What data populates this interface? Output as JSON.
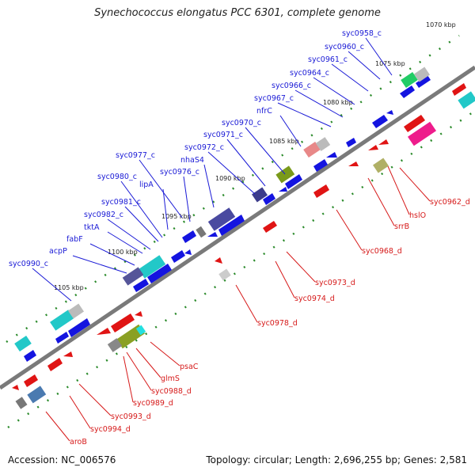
{
  "title": "Synechococcus elongatus PCC 6301, complete genome",
  "accession": "Accession: NC_006576",
  "summary": "Topology: circular; Length: 2,696,255 bp; Genes: 2,581",
  "ticks": [
    "1070 kbp",
    "1075 kbp",
    "1080 kbp",
    "1085 kbp",
    "1090 kbp",
    "1095 kbp",
    "1100 kbp",
    "1105 kbp"
  ],
  "genes_forward": [
    "syc0958_c",
    "syc0960_c",
    "syc0961_c",
    "syc0964_c",
    "syc0966_c",
    "syc0967_c",
    "nfrC",
    "syc0970_c",
    "syc0971_c",
    "syc0972_c",
    "nhaS4",
    "syc0976_c",
    "syc0977_c",
    "lipA",
    "syc0980_c",
    "syc0981_c",
    "syc0982_c",
    "tktA",
    "fabF",
    "acpP",
    "syc0990_c"
  ],
  "genes_reverse": [
    "syc0962_d",
    "hslO",
    "srrB",
    "syc0968_d",
    "syc0973_d",
    "syc0974_d",
    "syc0978_d",
    "psaC",
    "glmS",
    "syc0988_d",
    "syc0989_d",
    "syc0993_d",
    "syc0994_d",
    "aroB"
  ],
  "colors": {
    "forward_label": "#1a1ad6",
    "reverse_label": "#d61a1a",
    "backbone": "#808080",
    "tick": "#2a8a2a"
  }
}
